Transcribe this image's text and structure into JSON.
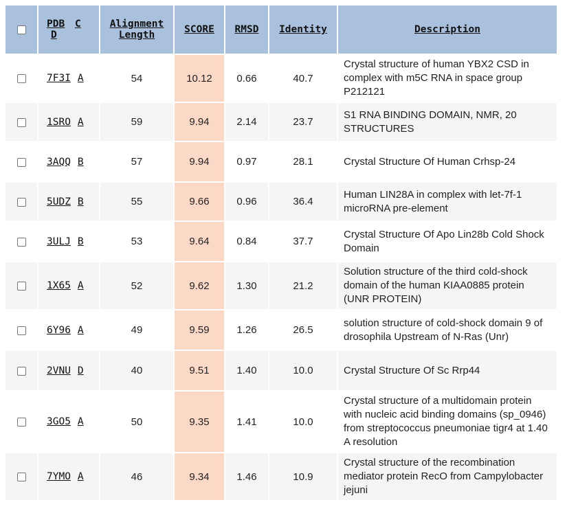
{
  "header": {
    "pdb": "PDB",
    "c": "C",
    "d": "D",
    "alignment_line1": "Alignment",
    "alignment_line2": "Length",
    "score": "SCORE",
    "rmsd": "RMSD",
    "identity": "Identity",
    "description": "Description"
  },
  "rows": [
    {
      "pdb": "7F3I",
      "chain": "A",
      "length": "54",
      "score": "10.12",
      "rmsd": "0.66",
      "identity": "40.7",
      "description": "Crystal structure of human YBX2 CSD in complex with m5C RNA in space group P212121"
    },
    {
      "pdb": "1SRO",
      "chain": "A",
      "length": "59",
      "score": "9.94",
      "rmsd": "2.14",
      "identity": "23.7",
      "description": "S1 RNA BINDING DOMAIN, NMR, 20 STRUCTURES"
    },
    {
      "pdb": "3AQQ",
      "chain": "B",
      "length": "57",
      "score": "9.94",
      "rmsd": "0.97",
      "identity": "28.1",
      "description": "Crystal Structure Of Human Crhsp-24"
    },
    {
      "pdb": "5UDZ",
      "chain": "B",
      "length": "55",
      "score": "9.66",
      "rmsd": "0.96",
      "identity": "36.4",
      "description": "Human LIN28A in complex with let-7f-1 microRNA pre-element"
    },
    {
      "pdb": "3ULJ",
      "chain": "B",
      "length": "53",
      "score": "9.64",
      "rmsd": "0.84",
      "identity": "37.7",
      "description": "Crystal Structure Of Apo Lin28b Cold Shock Domain"
    },
    {
      "pdb": "1X65",
      "chain": "A",
      "length": "52",
      "score": "9.62",
      "rmsd": "1.30",
      "identity": "21.2",
      "description": "Solution structure of the third cold-shock domain of the human KIAA0885 protein (UNR PROTEIN)"
    },
    {
      "pdb": "6Y96",
      "chain": "A",
      "length": "49",
      "score": "9.59",
      "rmsd": "1.26",
      "identity": "26.5",
      "description": "solution structure of cold-shock domain 9 of drosophila Upstream of N-Ras (Unr)"
    },
    {
      "pdb": "2VNU",
      "chain": "D",
      "length": "40",
      "score": "9.51",
      "rmsd": "1.40",
      "identity": "10.0",
      "description": "Crystal Structure Of Sc Rrp44"
    },
    {
      "pdb": "3GO5",
      "chain": "A",
      "length": "50",
      "score": "9.35",
      "rmsd": "1.41",
      "identity": "10.0",
      "description": "Crystal structure of a multidomain protein with nucleic acid binding domains (sp_0946) from streptococcus pneumoniae tigr4 at 1.40 A resolution"
    },
    {
      "pdb": "7YMO",
      "chain": "A",
      "length": "46",
      "score": "9.34",
      "rmsd": "1.46",
      "identity": "10.9",
      "description": "Crystal structure of the recombination mediator protein RecO from Campylobacter jejuni"
    }
  ]
}
